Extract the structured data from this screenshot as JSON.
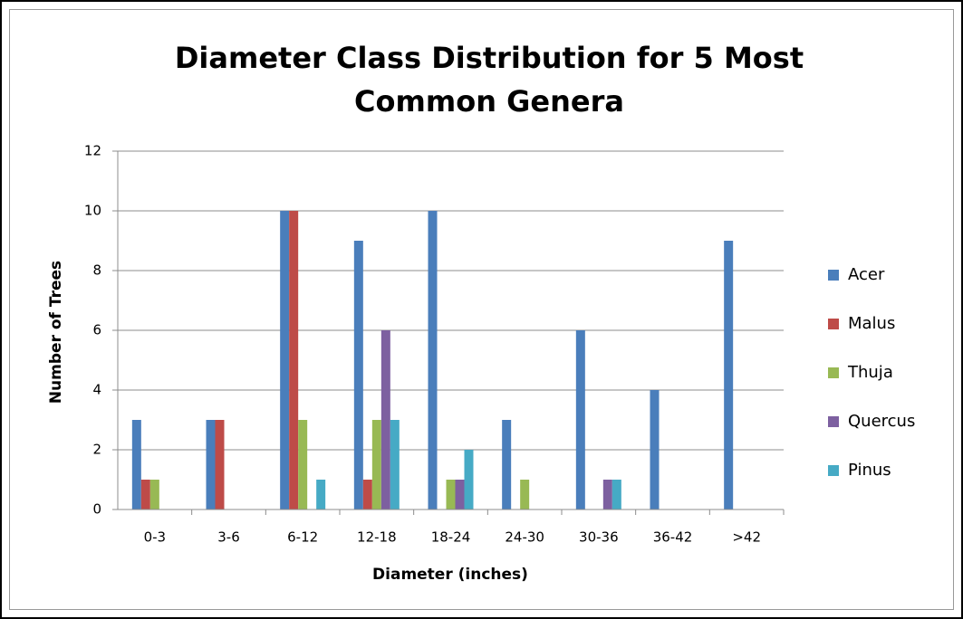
{
  "chart_data": {
    "type": "bar",
    "title": "Diameter Class Distribution for 5 Most Common Genera",
    "xlabel": "Diameter (inches)",
    "ylabel": "Number of Trees",
    "categories": [
      "0-3",
      "3-6",
      "6-12",
      "12-18",
      "18-24",
      "24-30",
      "30-36",
      "36-42",
      ">42"
    ],
    "series": [
      {
        "name": "Acer",
        "color": "#4a7ebb",
        "values": [
          3,
          3,
          10,
          9,
          10,
          3,
          6,
          4,
          9
        ]
      },
      {
        "name": "Malus",
        "color": "#be4b48",
        "values": [
          1,
          3,
          10,
          1,
          0,
          0,
          0,
          0,
          0
        ]
      },
      {
        "name": "Thuja",
        "color": "#98b954",
        "values": [
          1,
          0,
          3,
          3,
          1,
          1,
          0,
          0,
          0
        ]
      },
      {
        "name": "Quercus",
        "color": "#7d60a0",
        "values": [
          0,
          0,
          0,
          6,
          1,
          0,
          1,
          0,
          0
        ]
      },
      {
        "name": "Pinus",
        "color": "#46aac5",
        "values": [
          0,
          0,
          1,
          3,
          2,
          0,
          1,
          0,
          0
        ]
      }
    ],
    "ylim": [
      0,
      12
    ],
    "yticks": [
      0,
      2,
      4,
      6,
      8,
      10,
      12
    ],
    "grid": true,
    "legend": "right"
  }
}
